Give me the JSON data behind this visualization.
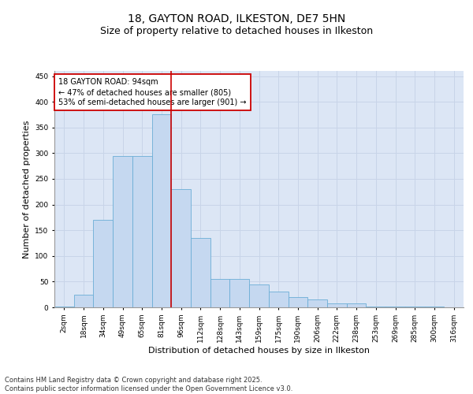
{
  "title": "18, GAYTON ROAD, ILKESTON, DE7 5HN",
  "subtitle": "Size of property relative to detached houses in Ilkeston",
  "xlabel": "Distribution of detached houses by size in Ilkeston",
  "ylabel": "Number of detached properties",
  "bar_labels": [
    "2sqm",
    "18sqm",
    "34sqm",
    "49sqm",
    "65sqm",
    "81sqm",
    "96sqm",
    "112sqm",
    "128sqm",
    "143sqm",
    "159sqm",
    "175sqm",
    "190sqm",
    "206sqm",
    "222sqm",
    "238sqm",
    "253sqm",
    "269sqm",
    "285sqm",
    "300sqm",
    "316sqm"
  ],
  "bar_values": [
    1,
    25,
    170,
    295,
    295,
    375,
    230,
    135,
    55,
    55,
    45,
    30,
    20,
    15,
    8,
    8,
    2,
    2,
    1,
    1,
    0
  ],
  "bar_color": "#c5d8f0",
  "bar_edge_color": "#6baed6",
  "grid_color": "#c8d4e8",
  "background_color": "#dce6f5",
  "vline_x_index": 5.5,
  "vline_color": "#cc0000",
  "annotation_text": "18 GAYTON ROAD: 94sqm\n← 47% of detached houses are smaller (805)\n53% of semi-detached houses are larger (901) →",
  "annotation_box_edgecolor": "#cc0000",
  "ylim": [
    0,
    460
  ],
  "yticks": [
    0,
    50,
    100,
    150,
    200,
    250,
    300,
    350,
    400,
    450
  ],
  "footnote": "Contains HM Land Registry data © Crown copyright and database right 2025.\nContains public sector information licensed under the Open Government Licence v3.0.",
  "title_fontsize": 10,
  "subtitle_fontsize": 9,
  "ylabel_fontsize": 8,
  "xlabel_fontsize": 8,
  "tick_fontsize": 6.5,
  "annotation_fontsize": 7,
  "footnote_fontsize": 6
}
